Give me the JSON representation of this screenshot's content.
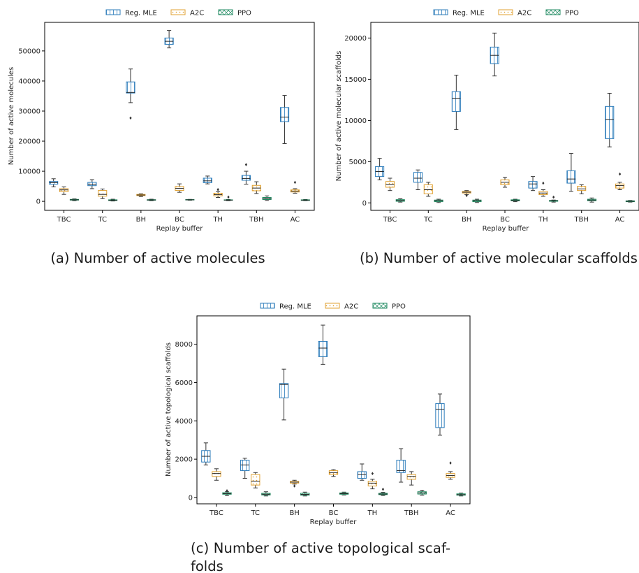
{
  "chart_data": [
    {
      "type": "box",
      "caption": "(a) Number of active molecules",
      "xlabel": "Replay buffer",
      "ylabel": "Number of active molecules",
      "categories": [
        "TBC",
        "TC",
        "BH",
        "BC",
        "TH",
        "TBH",
        "AC"
      ],
      "ylim": [
        -3000,
        59500
      ],
      "yticks": [
        0,
        10000,
        20000,
        30000,
        40000,
        50000
      ],
      "legend": "top-center",
      "grid": false,
      "series": [
        {
          "name": "Reg. MLE",
          "color": "#2b7bba",
          "hatch": "vertical",
          "boxes": [
            {
              "whislo": 4800,
              "q1": 5700,
              "med": 6200,
              "q3": 6600,
              "whishi": 7500,
              "fliers": []
            },
            {
              "whislo": 4200,
              "q1": 5200,
              "med": 5700,
              "q3": 6300,
              "whishi": 7200,
              "fliers": []
            },
            {
              "whislo": 32800,
              "q1": 36000,
              "med": 36200,
              "q3": 39700,
              "whishi": 44000,
              "fliers": [
                27700
              ]
            },
            {
              "whislo": 51000,
              "q1": 52200,
              "med": 53200,
              "q3": 54300,
              "whishi": 56800,
              "fliers": []
            },
            {
              "whislo": 5800,
              "q1": 6200,
              "med": 6800,
              "q3": 7700,
              "whishi": 8400,
              "fliers": []
            },
            {
              "whislo": 5700,
              "q1": 7000,
              "med": 7600,
              "q3": 8600,
              "whishi": 10000,
              "fliers": [
                12200
              ]
            },
            {
              "whislo": 19200,
              "q1": 26500,
              "med": 28000,
              "q3": 31200,
              "whishi": 35200,
              "fliers": []
            }
          ]
        },
        {
          "name": "A2C",
          "color": "#e0a030",
          "hatch": "dots",
          "boxes": [
            {
              "whislo": 2300,
              "q1": 3200,
              "med": 3800,
              "q3": 4200,
              "whishi": 4800,
              "fliers": []
            },
            {
              "whislo": 900,
              "q1": 1700,
              "med": 2300,
              "q3": 3600,
              "whishi": 4100,
              "fliers": []
            },
            {
              "whislo": 1600,
              "q1": 1900,
              "med": 2100,
              "q3": 2300,
              "whishi": 2500,
              "fliers": []
            },
            {
              "whislo": 3000,
              "q1": 3600,
              "med": 4300,
              "q3": 4900,
              "whishi": 5800,
              "fliers": []
            },
            {
              "whislo": 1300,
              "q1": 1800,
              "med": 2200,
              "q3": 2700,
              "whishi": 3200,
              "fliers": [
                3900
              ]
            },
            {
              "whislo": 2600,
              "q1": 3500,
              "med": 4400,
              "q3": 5300,
              "whishi": 6500,
              "fliers": []
            },
            {
              "whislo": 2700,
              "q1": 3100,
              "med": 3400,
              "q3": 3800,
              "whishi": 4200,
              "fliers": [
                6300
              ]
            }
          ]
        },
        {
          "name": "PPO",
          "color": "#1f8a60",
          "hatch": "cross",
          "boxes": [
            {
              "whislo": 200,
              "q1": 400,
              "med": 500,
              "q3": 650,
              "whishi": 800,
              "fliers": []
            },
            {
              "whislo": 100,
              "q1": 250,
              "med": 380,
              "q3": 500,
              "whishi": 700,
              "fliers": []
            },
            {
              "whislo": 200,
              "q1": 350,
              "med": 450,
              "q3": 550,
              "whishi": 700,
              "fliers": []
            },
            {
              "whislo": 350,
              "q1": 450,
              "med": 500,
              "q3": 580,
              "whishi": 650,
              "fliers": []
            },
            {
              "whislo": 200,
              "q1": 350,
              "med": 400,
              "q3": 500,
              "whishi": 600,
              "fliers": [
                1400
              ]
            },
            {
              "whislo": 300,
              "q1": 600,
              "med": 900,
              "q3": 1300,
              "whishi": 1800,
              "fliers": []
            },
            {
              "whislo": 200,
              "q1": 300,
              "med": 400,
              "q3": 500,
              "whishi": 600,
              "fliers": []
            }
          ]
        }
      ]
    },
    {
      "type": "box",
      "caption": "(b) Number of active molecular scaffolds",
      "xlabel": "Replay buffer",
      "ylabel": "Number of active molecular scaffolds",
      "categories": [
        "TBC",
        "TC",
        "BH",
        "BC",
        "TH",
        "TBH",
        "AC"
      ],
      "ylim": [
        -900,
        21900
      ],
      "yticks": [
        0,
        5000,
        10000,
        15000,
        20000
      ],
      "legend": "top-center",
      "grid": false,
      "series": [
        {
          "name": "Reg. MLE",
          "color": "#2b7bba",
          "hatch": "vertical",
          "boxes": [
            {
              "whislo": 2800,
              "q1": 3200,
              "med": 3800,
              "q3": 4400,
              "whishi": 5400,
              "fliers": []
            },
            {
              "whislo": 1600,
              "q1": 2500,
              "med": 3000,
              "q3": 3700,
              "whishi": 4000,
              "fliers": []
            },
            {
              "whislo": 8900,
              "q1": 11100,
              "med": 12700,
              "q3": 13500,
              "whishi": 15500,
              "fliers": []
            },
            {
              "whislo": 15400,
              "q1": 16900,
              "med": 17900,
              "q3": 18900,
              "whishi": 20600,
              "fliers": []
            },
            {
              "whislo": 1500,
              "q1": 1800,
              "med": 2300,
              "q3": 2600,
              "whishi": 3200,
              "fliers": []
            },
            {
              "whislo": 1400,
              "q1": 2400,
              "med": 2900,
              "q3": 3900,
              "whishi": 6000,
              "fliers": []
            },
            {
              "whislo": 6800,
              "q1": 7800,
              "med": 10100,
              "q3": 11700,
              "whishi": 13300,
              "fliers": []
            }
          ]
        },
        {
          "name": "A2C",
          "color": "#e0a030",
          "hatch": "dots",
          "boxes": [
            {
              "whislo": 1500,
              "q1": 1900,
              "med": 2200,
              "q3": 2600,
              "whishi": 3000,
              "fliers": []
            },
            {
              "whislo": 800,
              "q1": 1100,
              "med": 1600,
              "q3": 2200,
              "whishi": 2500,
              "fliers": []
            },
            {
              "whislo": 1000,
              "q1": 1200,
              "med": 1300,
              "q3": 1400,
              "whishi": 1500,
              "fliers": [
                900
              ]
            },
            {
              "whislo": 1900,
              "q1": 2200,
              "med": 2500,
              "q3": 2800,
              "whishi": 3100,
              "fliers": []
            },
            {
              "whislo": 800,
              "q1": 1000,
              "med": 1200,
              "q3": 1400,
              "whishi": 1600,
              "fliers": [
                2400
              ]
            },
            {
              "whislo": 1100,
              "q1": 1500,
              "med": 1700,
              "q3": 2000,
              "whishi": 2200,
              "fliers": []
            },
            {
              "whislo": 1600,
              "q1": 1800,
              "med": 2100,
              "q3": 2300,
              "whishi": 2500,
              "fliers": [
                3500
              ]
            }
          ]
        },
        {
          "name": "PPO",
          "color": "#1f8a60",
          "hatch": "cross",
          "boxes": [
            {
              "whislo": 100,
              "q1": 200,
              "med": 300,
              "q3": 400,
              "whishi": 500,
              "fliers": []
            },
            {
              "whislo": 50,
              "q1": 150,
              "med": 250,
              "q3": 350,
              "whishi": 450,
              "fliers": []
            },
            {
              "whislo": 50,
              "q1": 150,
              "med": 250,
              "q3": 350,
              "whishi": 450,
              "fliers": []
            },
            {
              "whislo": 150,
              "q1": 250,
              "med": 300,
              "q3": 380,
              "whishi": 450,
              "fliers": []
            },
            {
              "whislo": 100,
              "q1": 200,
              "med": 250,
              "q3": 300,
              "whishi": 350,
              "fliers": [
                700
              ]
            },
            {
              "whislo": 100,
              "q1": 250,
              "med": 350,
              "q3": 450,
              "whishi": 600,
              "fliers": []
            },
            {
              "whislo": 100,
              "q1": 150,
              "med": 200,
              "q3": 250,
              "whishi": 300,
              "fliers": []
            }
          ]
        }
      ]
    },
    {
      "type": "box",
      "caption_lines": [
        "(c) Number of active topological scaf-",
        "folds"
      ],
      "xlabel": "Replay buffer",
      "ylabel": "Number of active topological scaffolds",
      "categories": [
        "TBC",
        "TC",
        "BH",
        "BC",
        "TH",
        "TBH",
        "AC"
      ],
      "ylim": [
        -330,
        9480
      ],
      "yticks": [
        0,
        2000,
        4000,
        6000,
        8000
      ],
      "legend": "top-center",
      "grid": false,
      "series": [
        {
          "name": "Reg. MLE",
          "color": "#2b7bba",
          "hatch": "vertical",
          "boxes": [
            {
              "whislo": 1700,
              "q1": 1850,
              "med": 2150,
              "q3": 2450,
              "whishi": 2850,
              "fliers": []
            },
            {
              "whislo": 1000,
              "q1": 1400,
              "med": 1700,
              "q3": 1950,
              "whishi": 2050,
              "fliers": []
            },
            {
              "whislo": 4050,
              "q1": 5200,
              "med": 5900,
              "q3": 5950,
              "whishi": 6700,
              "fliers": []
            },
            {
              "whislo": 6950,
              "q1": 7350,
              "med": 7800,
              "q3": 8150,
              "whishi": 9000,
              "fliers": []
            },
            {
              "whislo": 900,
              "q1": 1000,
              "med": 1200,
              "q3": 1350,
              "whishi": 1750,
              "fliers": []
            },
            {
              "whislo": 800,
              "q1": 1300,
              "med": 1400,
              "q3": 1950,
              "whishi": 2550,
              "fliers": []
            },
            {
              "whislo": 3250,
              "q1": 3650,
              "med": 4600,
              "q3": 4900,
              "whishi": 5400,
              "fliers": []
            }
          ]
        },
        {
          "name": "A2C",
          "color": "#e0a030",
          "hatch": "dots",
          "boxes": [
            {
              "whislo": 900,
              "q1": 1100,
              "med": 1250,
              "q3": 1350,
              "whishi": 1500,
              "fliers": []
            },
            {
              "whislo": 500,
              "q1": 650,
              "med": 850,
              "q3": 1200,
              "whishi": 1300,
              "fliers": []
            },
            {
              "whislo": 700,
              "q1": 750,
              "med": 800,
              "q3": 850,
              "whishi": 900,
              "fliers": [
                600
              ]
            },
            {
              "whislo": 1100,
              "q1": 1200,
              "med": 1300,
              "q3": 1400,
              "whishi": 1450,
              "fliers": []
            },
            {
              "whislo": 450,
              "q1": 600,
              "med": 750,
              "q3": 850,
              "whishi": 950,
              "fliers": [
                1250
              ]
            },
            {
              "whislo": 650,
              "q1": 950,
              "med": 1100,
              "q3": 1200,
              "whishi": 1350,
              "fliers": []
            },
            {
              "whislo": 950,
              "q1": 1050,
              "med": 1150,
              "q3": 1250,
              "whishi": 1350,
              "fliers": [
                1800
              ]
            }
          ]
        },
        {
          "name": "PPO",
          "color": "#1f8a60",
          "hatch": "cross",
          "boxes": [
            {
              "whislo": 100,
              "q1": 170,
              "med": 200,
              "q3": 250,
              "whishi": 300,
              "fliers": [
                350
              ]
            },
            {
              "whislo": 80,
              "q1": 130,
              "med": 170,
              "q3": 220,
              "whishi": 300,
              "fliers": []
            },
            {
              "whislo": 80,
              "q1": 120,
              "med": 160,
              "q3": 220,
              "whishi": 280,
              "fliers": []
            },
            {
              "whislo": 130,
              "q1": 170,
              "med": 200,
              "q3": 240,
              "whishi": 280,
              "fliers": []
            },
            {
              "whislo": 100,
              "q1": 150,
              "med": 180,
              "q3": 220,
              "whishi": 270,
              "fliers": [
                430
              ]
            },
            {
              "whislo": 120,
              "q1": 180,
              "med": 240,
              "q3": 300,
              "whishi": 380,
              "fliers": []
            },
            {
              "whislo": 80,
              "q1": 120,
              "med": 150,
              "q3": 190,
              "whishi": 230,
              "fliers": []
            }
          ]
        }
      ]
    }
  ]
}
